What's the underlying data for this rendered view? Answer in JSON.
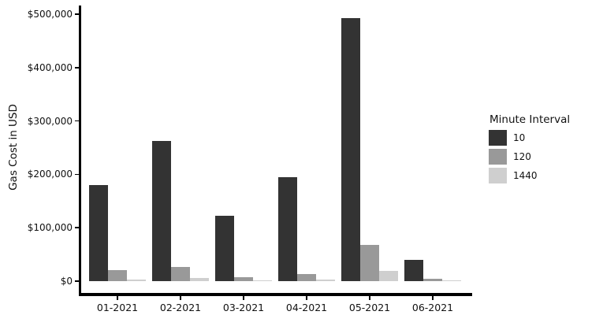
{
  "chart_data": {
    "type": "bar",
    "title": "",
    "xlabel": "",
    "ylabel": "Gas Cost in USD",
    "categories": [
      "01-2021",
      "02-2021",
      "03-2021",
      "04-2021",
      "05-2021",
      "06-2021"
    ],
    "series": [
      {
        "name": "10",
        "color": "#333333",
        "values": [
          180000,
          262000,
          123000,
          195000,
          493000,
          40000
        ]
      },
      {
        "name": "120",
        "color": "#999999",
        "values": [
          21000,
          26000,
          8000,
          14000,
          68000,
          4000
        ]
      },
      {
        "name": "1440",
        "color": "#cfcfcf",
        "values": [
          3500,
          6500,
          1500,
          2500,
          19000,
          1200
        ]
      }
    ],
    "ylim": [
      0,
      500000
    ],
    "yticks": [
      {
        "value": 0,
        "label": "$0"
      },
      {
        "value": 100000,
        "label": "$100,000"
      },
      {
        "value": 200000,
        "label": "$200,000"
      },
      {
        "value": 300000,
        "label": "$300,000"
      },
      {
        "value": 400000,
        "label": "$400,000"
      },
      {
        "value": 500000,
        "label": "$500,000"
      }
    ],
    "grid": false,
    "legend": {
      "title": "Minute Interval",
      "position": "right-outside"
    }
  },
  "colors": {
    "axis": "#000000",
    "text": "#111111",
    "background": "#ffffff"
  }
}
